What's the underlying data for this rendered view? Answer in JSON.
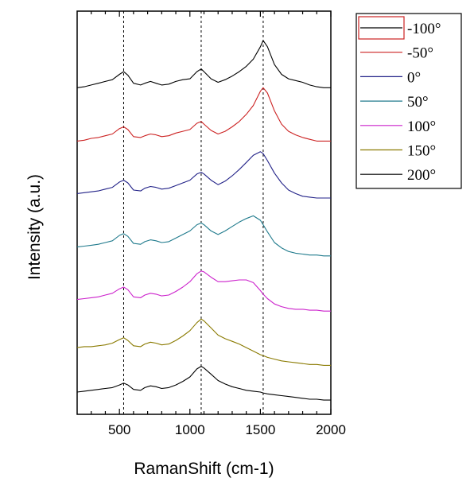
{
  "chart_data": {
    "type": "line",
    "title": "",
    "xlabel": "RamanShift (cm-1)",
    "ylabel": "Intensity (a.u.)",
    "xlim": [
      200,
      2000
    ],
    "x_ticks": [
      500,
      1000,
      1500,
      2000
    ],
    "y_ticks_labeled": false,
    "grid": false,
    "reference_lines_x": [
      530,
      1080,
      1520
    ],
    "legend": {
      "placement": "outside-right-top",
      "highlighted_entry": "-100°"
    },
    "x": [
      200,
      250,
      300,
      350,
      400,
      450,
      500,
      530,
      560,
      600,
      650,
      680,
      720,
      760,
      800,
      850,
      900,
      950,
      1000,
      1050,
      1080,
      1100,
      1150,
      1200,
      1250,
      1300,
      1350,
      1400,
      1450,
      1500,
      1520,
      1550,
      1600,
      1650,
      1700,
      1750,
      1800,
      1850,
      1900,
      1950,
      2000
    ],
    "series": [
      {
        "name": "-100°",
        "color": "#000000",
        "values": [
          3.42,
          3.43,
          3.45,
          3.47,
          3.49,
          3.51,
          3.57,
          3.6,
          3.56,
          3.47,
          3.45,
          3.47,
          3.49,
          3.47,
          3.45,
          3.46,
          3.49,
          3.51,
          3.52,
          3.6,
          3.63,
          3.6,
          3.52,
          3.48,
          3.51,
          3.55,
          3.6,
          3.66,
          3.74,
          3.88,
          3.95,
          3.88,
          3.68,
          3.57,
          3.52,
          3.5,
          3.48,
          3.45,
          3.43,
          3.42,
          3.42
        ]
      },
      {
        "name": "-50°",
        "color": "#cc2222",
        "values": [
          2.82,
          2.83,
          2.85,
          2.86,
          2.88,
          2.9,
          2.96,
          2.98,
          2.95,
          2.87,
          2.86,
          2.88,
          2.9,
          2.89,
          2.87,
          2.88,
          2.91,
          2.93,
          2.95,
          3.02,
          3.04,
          3.01,
          2.94,
          2.9,
          2.93,
          2.98,
          3.04,
          3.12,
          3.22,
          3.38,
          3.42,
          3.36,
          3.16,
          3.01,
          2.93,
          2.89,
          2.86,
          2.84,
          2.82,
          2.82,
          2.82
        ]
      },
      {
        "name": "0°",
        "color": "#222288",
        "values": [
          2.23,
          2.24,
          2.25,
          2.26,
          2.28,
          2.3,
          2.36,
          2.38,
          2.35,
          2.27,
          2.26,
          2.29,
          2.31,
          2.3,
          2.28,
          2.29,
          2.32,
          2.35,
          2.38,
          2.45,
          2.47,
          2.45,
          2.38,
          2.33,
          2.37,
          2.43,
          2.5,
          2.58,
          2.66,
          2.7,
          2.68,
          2.6,
          2.46,
          2.35,
          2.27,
          2.23,
          2.2,
          2.19,
          2.18,
          2.18,
          2.18
        ]
      },
      {
        "name": "50°",
        "color": "#1f7a8c",
        "values": [
          1.63,
          1.64,
          1.65,
          1.66,
          1.68,
          1.7,
          1.76,
          1.78,
          1.75,
          1.67,
          1.66,
          1.69,
          1.71,
          1.7,
          1.68,
          1.69,
          1.73,
          1.77,
          1.81,
          1.88,
          1.9,
          1.88,
          1.81,
          1.77,
          1.81,
          1.86,
          1.91,
          1.95,
          1.98,
          1.93,
          1.88,
          1.8,
          1.68,
          1.62,
          1.58,
          1.56,
          1.55,
          1.54,
          1.54,
          1.53,
          1.53
        ]
      },
      {
        "name": "100°",
        "color": "#cc22cc",
        "values": [
          1.04,
          1.05,
          1.06,
          1.07,
          1.09,
          1.11,
          1.16,
          1.18,
          1.15,
          1.07,
          1.06,
          1.09,
          1.11,
          1.1,
          1.08,
          1.09,
          1.13,
          1.18,
          1.24,
          1.33,
          1.36,
          1.35,
          1.29,
          1.24,
          1.24,
          1.25,
          1.26,
          1.26,
          1.23,
          1.14,
          1.1,
          1.05,
          0.99,
          0.96,
          0.94,
          0.93,
          0.93,
          0.92,
          0.92,
          0.91,
          0.91
        ]
      },
      {
        "name": "150°",
        "color": "#8a7a00",
        "values": [
          0.5,
          0.51,
          0.51,
          0.52,
          0.53,
          0.55,
          0.59,
          0.61,
          0.58,
          0.52,
          0.51,
          0.54,
          0.56,
          0.55,
          0.53,
          0.54,
          0.58,
          0.63,
          0.69,
          0.78,
          0.82,
          0.8,
          0.72,
          0.64,
          0.6,
          0.57,
          0.54,
          0.5,
          0.46,
          0.42,
          0.41,
          0.39,
          0.37,
          0.35,
          0.34,
          0.33,
          0.32,
          0.31,
          0.31,
          0.3,
          0.3
        ]
      },
      {
        "name": "200°",
        "color": "#000000",
        "values": [
          0.0,
          0.01,
          0.02,
          0.03,
          0.04,
          0.05,
          0.08,
          0.1,
          0.08,
          0.03,
          0.02,
          0.05,
          0.07,
          0.06,
          0.04,
          0.05,
          0.08,
          0.12,
          0.17,
          0.26,
          0.29,
          0.27,
          0.2,
          0.13,
          0.09,
          0.06,
          0.04,
          0.02,
          0.01,
          0.0,
          -0.01,
          -0.02,
          -0.03,
          -0.04,
          -0.05,
          -0.06,
          -0.07,
          -0.08,
          -0.08,
          -0.09,
          -0.09
        ]
      }
    ],
    "ylim": [
      -0.25,
      4.28
    ]
  }
}
